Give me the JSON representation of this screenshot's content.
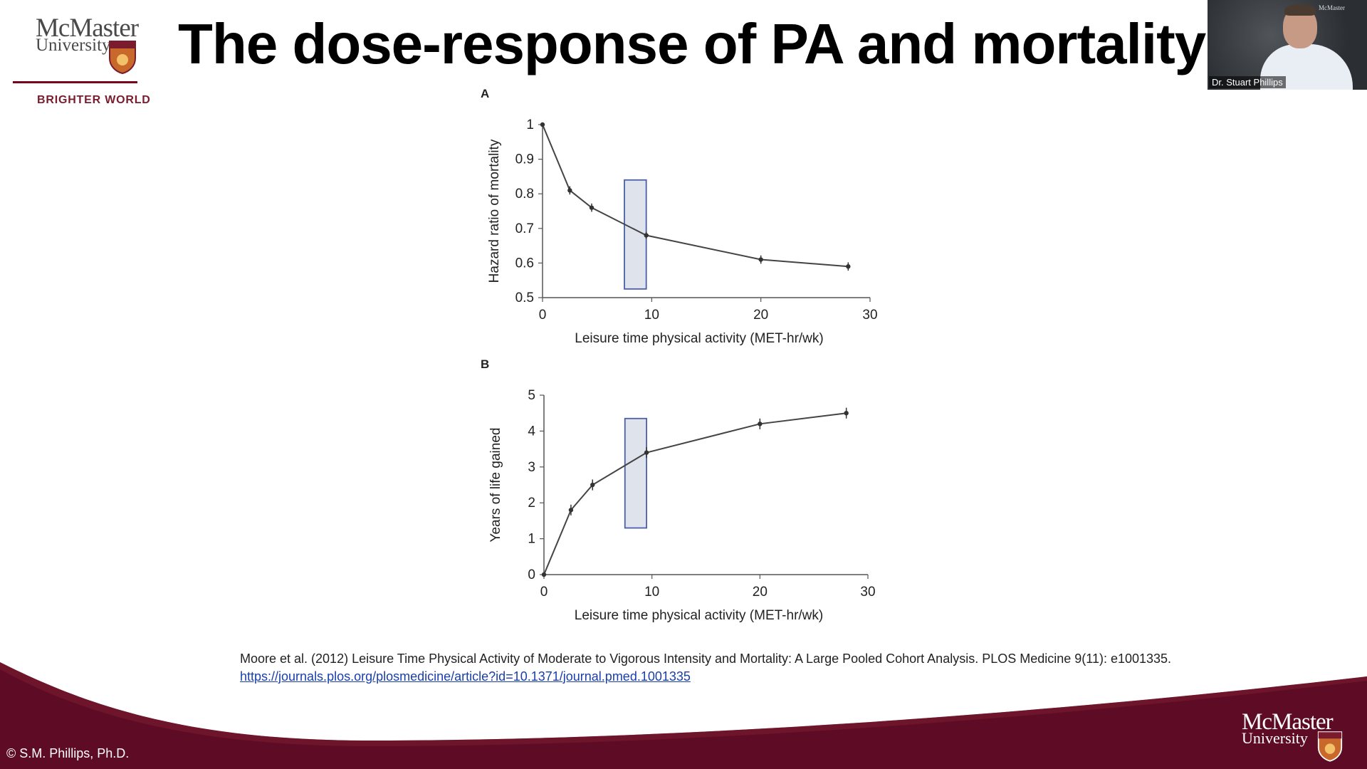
{
  "header": {
    "logo_word1": "McMaster",
    "logo_word2": "University",
    "tagline": "BRIGHTER WORLD",
    "title": "The dose-response of PA and mortality"
  },
  "video": {
    "name": "Dr. Stuart Phillips",
    "mini_logo": "McMaster"
  },
  "colors": {
    "maroon": "#5e0c26",
    "band_light": "#7a1c2e",
    "box_fill": "#dfe3ec",
    "box_stroke": "#4a5fa8",
    "line": "#444444"
  },
  "chart_data": [
    {
      "type": "line",
      "panel_label": "A",
      "xlabel": "Leisure time physical activity (MET-hr/wk)",
      "ylabel": "Hazard ratio of mortality",
      "xlim": [
        0,
        30
      ],
      "ylim": [
        0.5,
        1
      ],
      "xticks": [
        0,
        10,
        20,
        30
      ],
      "yticks": [
        0.5,
        0.6,
        0.7,
        0.8,
        0.9,
        1
      ],
      "ytick_labels": [
        "0.5",
        "0.6",
        "0.7",
        "0.8",
        "0.9",
        "1"
      ],
      "x": [
        0,
        2.5,
        4.5,
        9.5,
        20,
        28
      ],
      "y": [
        1.0,
        0.81,
        0.76,
        0.68,
        0.61,
        0.59
      ],
      "err": [
        0,
        0.012,
        0.012,
        0.01,
        0.012,
        0.012
      ],
      "highlight_box": {
        "x0": 7.5,
        "x1": 9.5,
        "y0": 0.525,
        "y1": 0.84
      }
    },
    {
      "type": "line",
      "panel_label": "B",
      "xlabel": "Leisure time physical activity (MET-hr/wk)",
      "ylabel": "Years of life gained",
      "xlim": [
        0,
        30
      ],
      "ylim": [
        0,
        5
      ],
      "xticks": [
        0,
        10,
        20,
        30
      ],
      "yticks": [
        0,
        1,
        2,
        3,
        4,
        5
      ],
      "ytick_labels": [
        "0",
        "1",
        "2",
        "3",
        "4",
        "5"
      ],
      "x": [
        0,
        2.5,
        4.5,
        9.5,
        20,
        28
      ],
      "y": [
        0,
        1.8,
        2.5,
        3.4,
        4.2,
        4.5
      ],
      "err": [
        0,
        0.15,
        0.15,
        0.15,
        0.15,
        0.15
      ],
      "highlight_box": {
        "x0": 7.5,
        "x1": 9.5,
        "y0": 1.3,
        "y1": 4.35
      }
    }
  ],
  "citation": {
    "text": "Moore et al. (2012) Leisure Time Physical Activity of Moderate to Vigorous Intensity and Mortality: A Large Pooled Cohort Analysis. PLOS Medicine 9(11): e1001335. ",
    "link": "https://journals.plos.org/plosmedicine/article?id=10.1371/journal.pmed.1001335"
  },
  "footer": {
    "copyright": "© S.M. Phillips, Ph.D.",
    "logo_word1": "McMaster",
    "logo_word2": "University"
  }
}
